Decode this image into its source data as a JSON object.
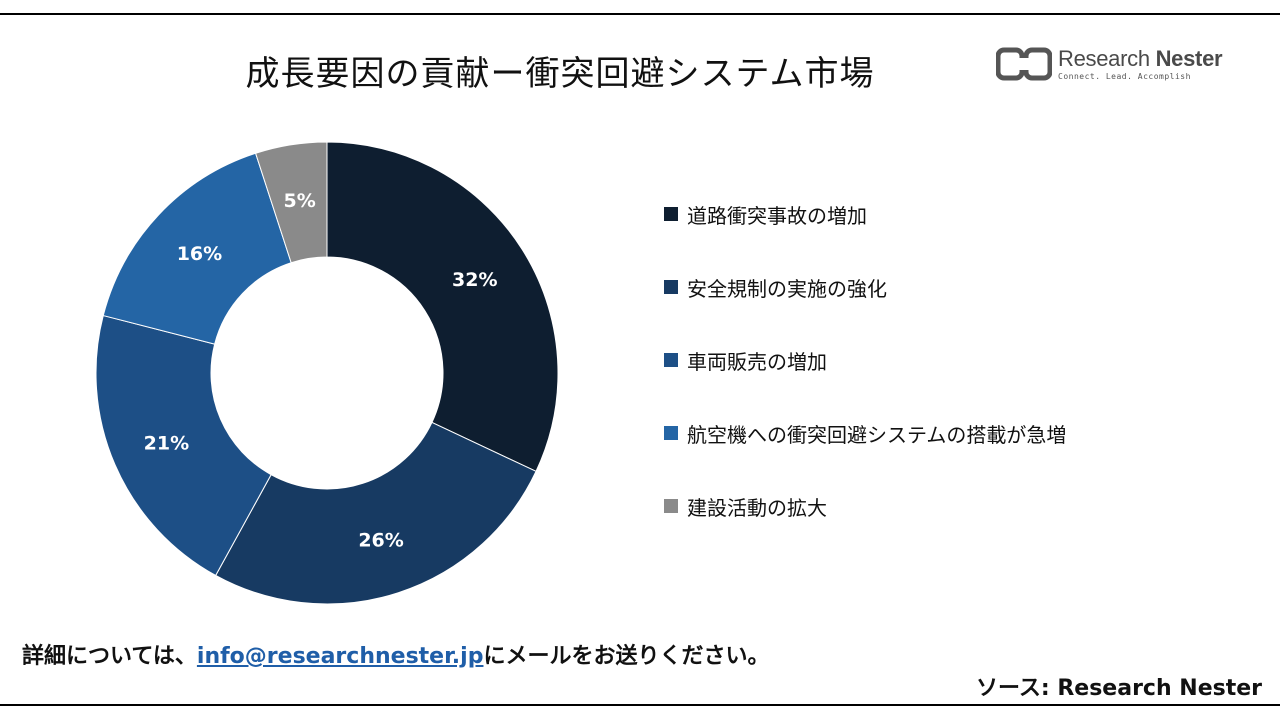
{
  "title": "成長要因の貢献ー衝突回避システム市場",
  "logo": {
    "name_light": "Research ",
    "name_bold": "Nester",
    "tagline": "Connect. Lead. Accomplish",
    "color": "#555555"
  },
  "chart_data": {
    "type": "pie",
    "subtype": "donut",
    "categories": [
      "道路衝突事故の増加",
      "安全規制の実施の強化",
      "車両販売の増加",
      "航空機への衝突回避システムの搭載が急増",
      "建設活動の拡大"
    ],
    "values": [
      32,
      26,
      21,
      16,
      5
    ],
    "labels": [
      "32%",
      "26%",
      "21%",
      "16%",
      "5%"
    ],
    "colors": [
      "#0e1e30",
      "#173a62",
      "#1d4f86",
      "#2465a5",
      "#8a8a8a"
    ],
    "legend_position": "right"
  },
  "footer": {
    "prefix": "詳細については、",
    "email": "info@researchnester.jp",
    "suffix": "にメールをお送りください。",
    "source": "ソース: Research Nester"
  }
}
